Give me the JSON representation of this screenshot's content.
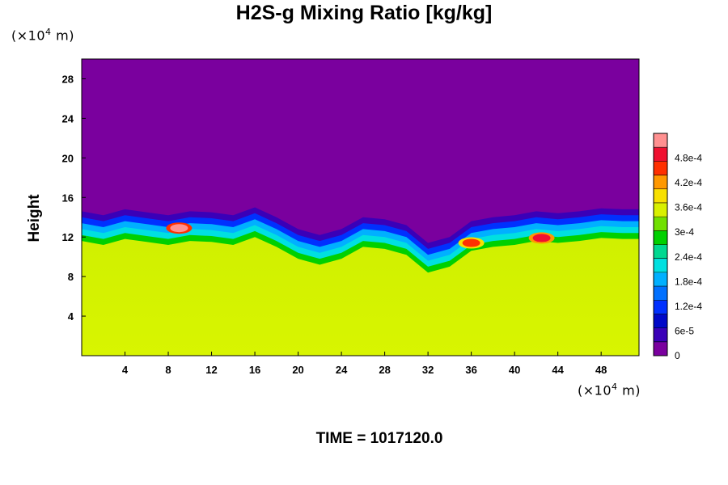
{
  "title": "H2S-g Mixing Ratio [kg/kg]",
  "time_label": "TIME = 1017120.0",
  "y_unit": {
    "prefix": "(×10",
    "exp": "4",
    "suffix": " m)"
  },
  "x_unit": {
    "prefix": "(×10",
    "exp": "4",
    "suffix": " m)"
  },
  "chart_data": {
    "type": "heatmap",
    "title": "H2S-g Mixing Ratio [kg/kg]",
    "ylabel": "Height",
    "xlabel": "",
    "xlim": [
      0,
      51.5
    ],
    "ylim": [
      0,
      30
    ],
    "x_ticks": [
      "4",
      "8",
      "12",
      "16",
      "20",
      "24",
      "28",
      "32",
      "36",
      "40",
      "44",
      "48"
    ],
    "x_tick_values": [
      4,
      8,
      12,
      16,
      20,
      24,
      28,
      32,
      36,
      40,
      44,
      48
    ],
    "y_ticks": [
      "4",
      "8",
      "12",
      "16",
      "20",
      "24",
      "28"
    ],
    "y_tick_values": [
      4,
      8,
      12,
      16,
      20,
      24,
      28
    ],
    "colorbar": {
      "min": 0,
      "max": 0.00054,
      "tick_labels": [
        "0",
        "6e-5",
        "1.2e-4",
        "1.8e-4",
        "2.4e-4",
        "3e-4",
        "3.6e-4",
        "4.2e-4",
        "4.8e-4"
      ],
      "tick_values": [
        0,
        6e-05,
        0.00012,
        0.00018,
        0.00024,
        0.0003,
        0.00036,
        0.00042,
        0.00048
      ],
      "colors": [
        "#7a009e",
        "#3a00b8",
        "#0008c8",
        "#0030ff",
        "#0070ff",
        "#00b0ff",
        "#00e0e0",
        "#00d890",
        "#00d000",
        "#70e000",
        "#d8f000",
        "#f8e000",
        "#ff9800",
        "#ff3000",
        "#f01030",
        "#ff9090"
      ]
    },
    "field": {
      "upper_value": 0,
      "lower_value": 0.00033,
      "interface_height": [
        [
          0,
          14.6
        ],
        [
          2,
          14.2
        ],
        [
          4,
          14.8
        ],
        [
          6,
          14.5
        ],
        [
          8,
          14.2
        ],
        [
          10,
          14.6
        ],
        [
          12,
          14.5
        ],
        [
          14,
          14.2
        ],
        [
          16,
          15.0
        ],
        [
          18,
          14.0
        ],
        [
          20,
          12.8
        ],
        [
          22,
          12.2
        ],
        [
          24,
          12.8
        ],
        [
          26,
          14.0
        ],
        [
          28,
          13.8
        ],
        [
          30,
          13.2
        ],
        [
          32,
          11.4
        ],
        [
          34,
          12.0
        ],
        [
          36,
          13.6
        ],
        [
          38,
          14.0
        ],
        [
          40,
          14.2
        ],
        [
          42,
          14.6
        ],
        [
          44,
          14.4
        ],
        [
          46,
          14.6
        ],
        [
          48,
          14.9
        ],
        [
          50,
          14.8
        ],
        [
          51.5,
          14.8
        ]
      ],
      "hot_spots": [
        {
          "x": 9,
          "y": 12.9,
          "value": 0.00054
        },
        {
          "x": 42.5,
          "y": 11.9,
          "value": 0.00048
        },
        {
          "x": 36,
          "y": 11.4,
          "value": 0.00044
        }
      ]
    }
  }
}
